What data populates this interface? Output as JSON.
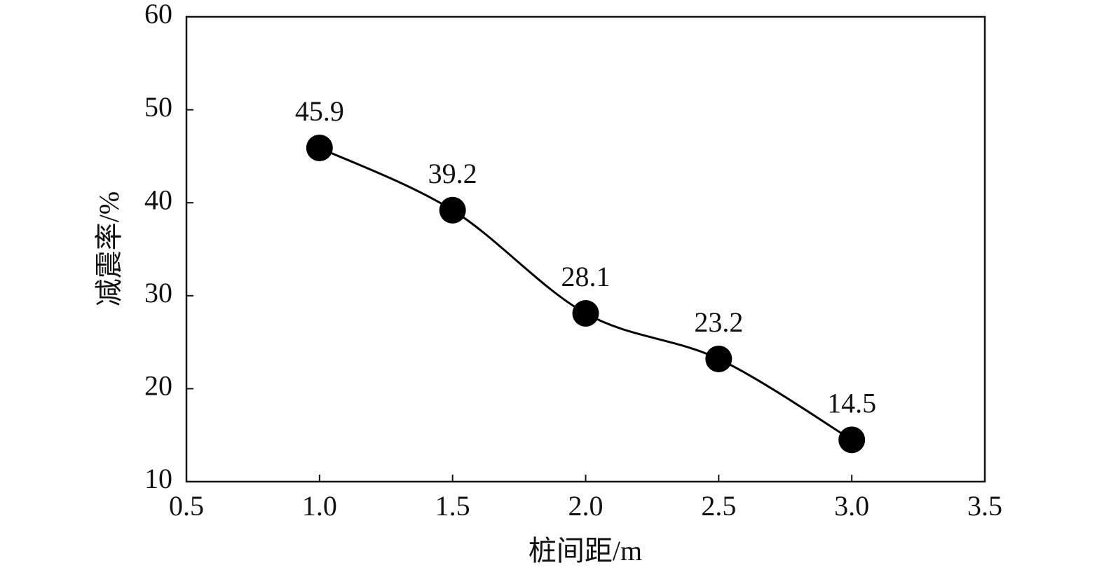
{
  "chart_data": {
    "type": "line",
    "xlabel": "桩间距/m",
    "ylabel": "减震率/%",
    "x": [
      1.0,
      1.5,
      2.0,
      2.5,
      3.0
    ],
    "series": [
      {
        "name": null,
        "color": "#000000",
        "values": [
          45.9,
          39.2,
          28.1,
          23.2,
          14.5
        ]
      }
    ],
    "xlim": [
      0.5,
      3.5
    ],
    "xticks": [
      0.5,
      {
        "value": 1,
        "label": "1.0"
      },
      1.5,
      {
        "value": 2,
        "label": "2.0"
      },
      2.5,
      {
        "value": 3,
        "label": "3.0"
      },
      3.5
    ],
    "ylim": [
      10,
      60
    ],
    "yticks": [
      10,
      20,
      30,
      40,
      50,
      60
    ],
    "smooth": true,
    "markers": true,
    "data_labels": true
  }
}
